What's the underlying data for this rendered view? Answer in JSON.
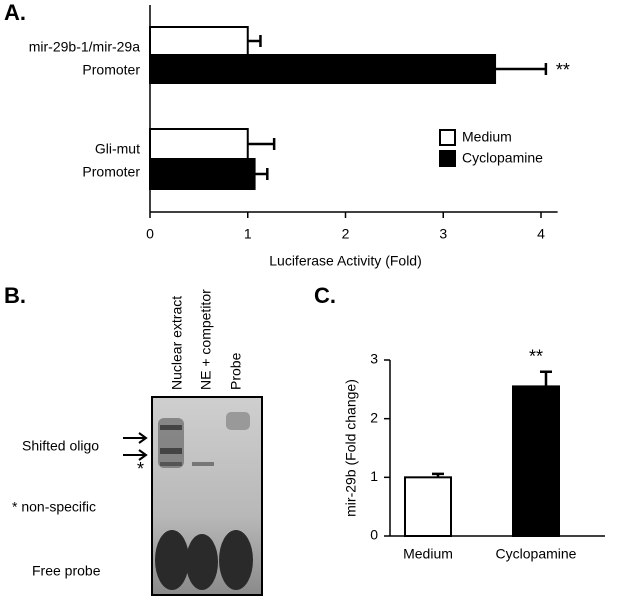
{
  "chart_data": [
    {
      "type": "hbar",
      "title": "A.",
      "categories": [
        [
          "mir-29b-1/mir-29a",
          "Promoter"
        ],
        [
          "Gli-mut",
          "Promoter"
        ]
      ],
      "series": [
        {
          "name": "Medium",
          "color": "#ffffff",
          "values": [
            1.0,
            1.0
          ],
          "errors": [
            0.13,
            0.27
          ]
        },
        {
          "name": "Cyclopamine",
          "color": "#000000",
          "values": [
            3.53,
            1.07
          ],
          "errors": [
            0.52,
            0.13
          ]
        }
      ],
      "annotation": "**",
      "xlabel": "Luciferase Activity (Fold)",
      "xlim": [
        0,
        4.17
      ],
      "xticks": [
        0,
        1,
        2,
        3,
        4
      ],
      "legend": "right"
    },
    {
      "type": "bar",
      "title": "C.",
      "categories": [
        "Medium",
        "Cyclopamine"
      ],
      "values": [
        1.0,
        2.55
      ],
      "errors": [
        0.06,
        0.25
      ],
      "colors": [
        "#ffffff",
        "#000000"
      ],
      "annotation": "**",
      "ylabel": "mir-29b (Fold change)",
      "ylim": [
        0,
        3
      ],
      "yticks": [
        0,
        1,
        2,
        3
      ]
    }
  ],
  "gel": {
    "title": "B.",
    "lanes": [
      "Nuclear extract",
      "NE + competitor",
      "Probe"
    ],
    "labels": {
      "shifted": "Shifted oligo",
      "star": "*",
      "nonspecific": "* non-specific",
      "free": "Free probe"
    }
  }
}
